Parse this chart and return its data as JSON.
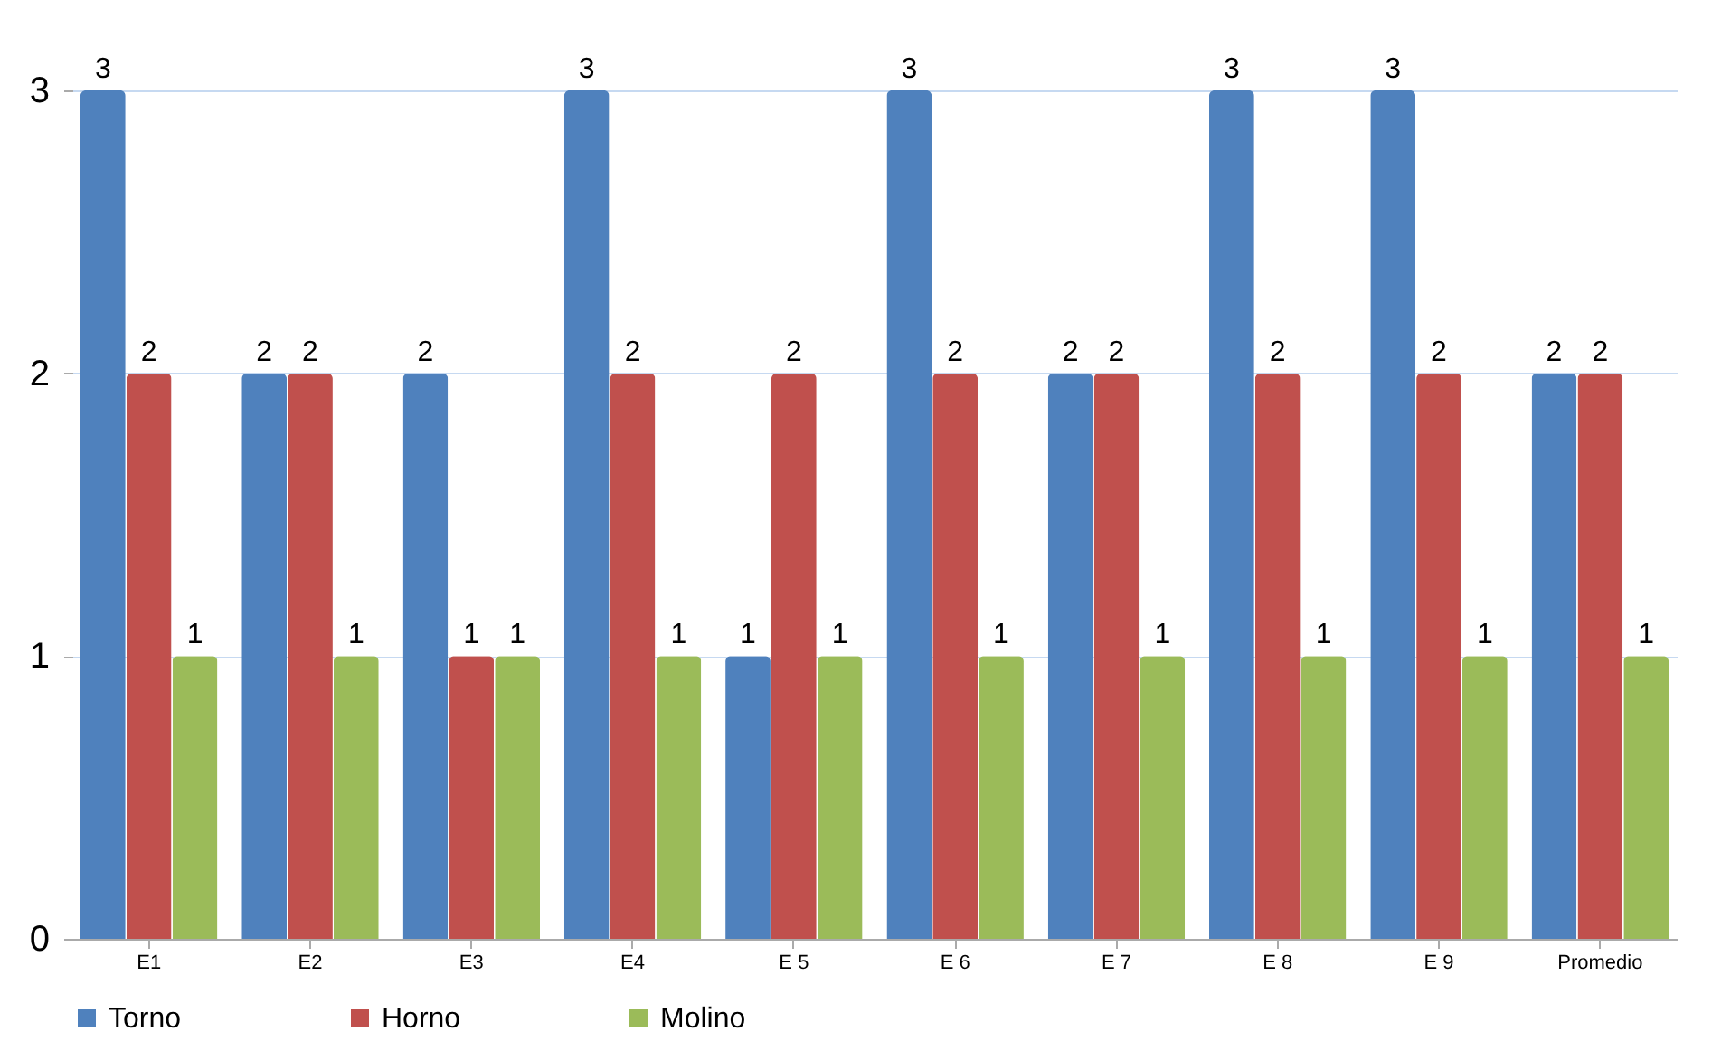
{
  "chart_data": {
    "type": "bar",
    "categories": [
      "E1",
      "E2",
      "E3",
      "E4",
      "E 5",
      "E 6",
      "E 7",
      "E 8",
      "E 9",
      "Promedio"
    ],
    "series": [
      {
        "name": "Torno",
        "color": "#4f81bd",
        "values": [
          3,
          2,
          2,
          3,
          1,
          3,
          2,
          3,
          3,
          2
        ]
      },
      {
        "name": "Horno",
        "color": "#c0504d",
        "values": [
          2,
          2,
          1,
          2,
          2,
          2,
          2,
          2,
          2,
          2
        ]
      },
      {
        "name": "Molino",
        "color": "#9bbb59",
        "values": [
          1,
          1,
          1,
          1,
          1,
          1,
          1,
          1,
          1,
          1
        ]
      }
    ],
    "ylim": [
      0,
      3
    ],
    "yticks": [
      0,
      1,
      2,
      3
    ],
    "grid": "y",
    "legend": "bottom",
    "data_labels": true
  }
}
